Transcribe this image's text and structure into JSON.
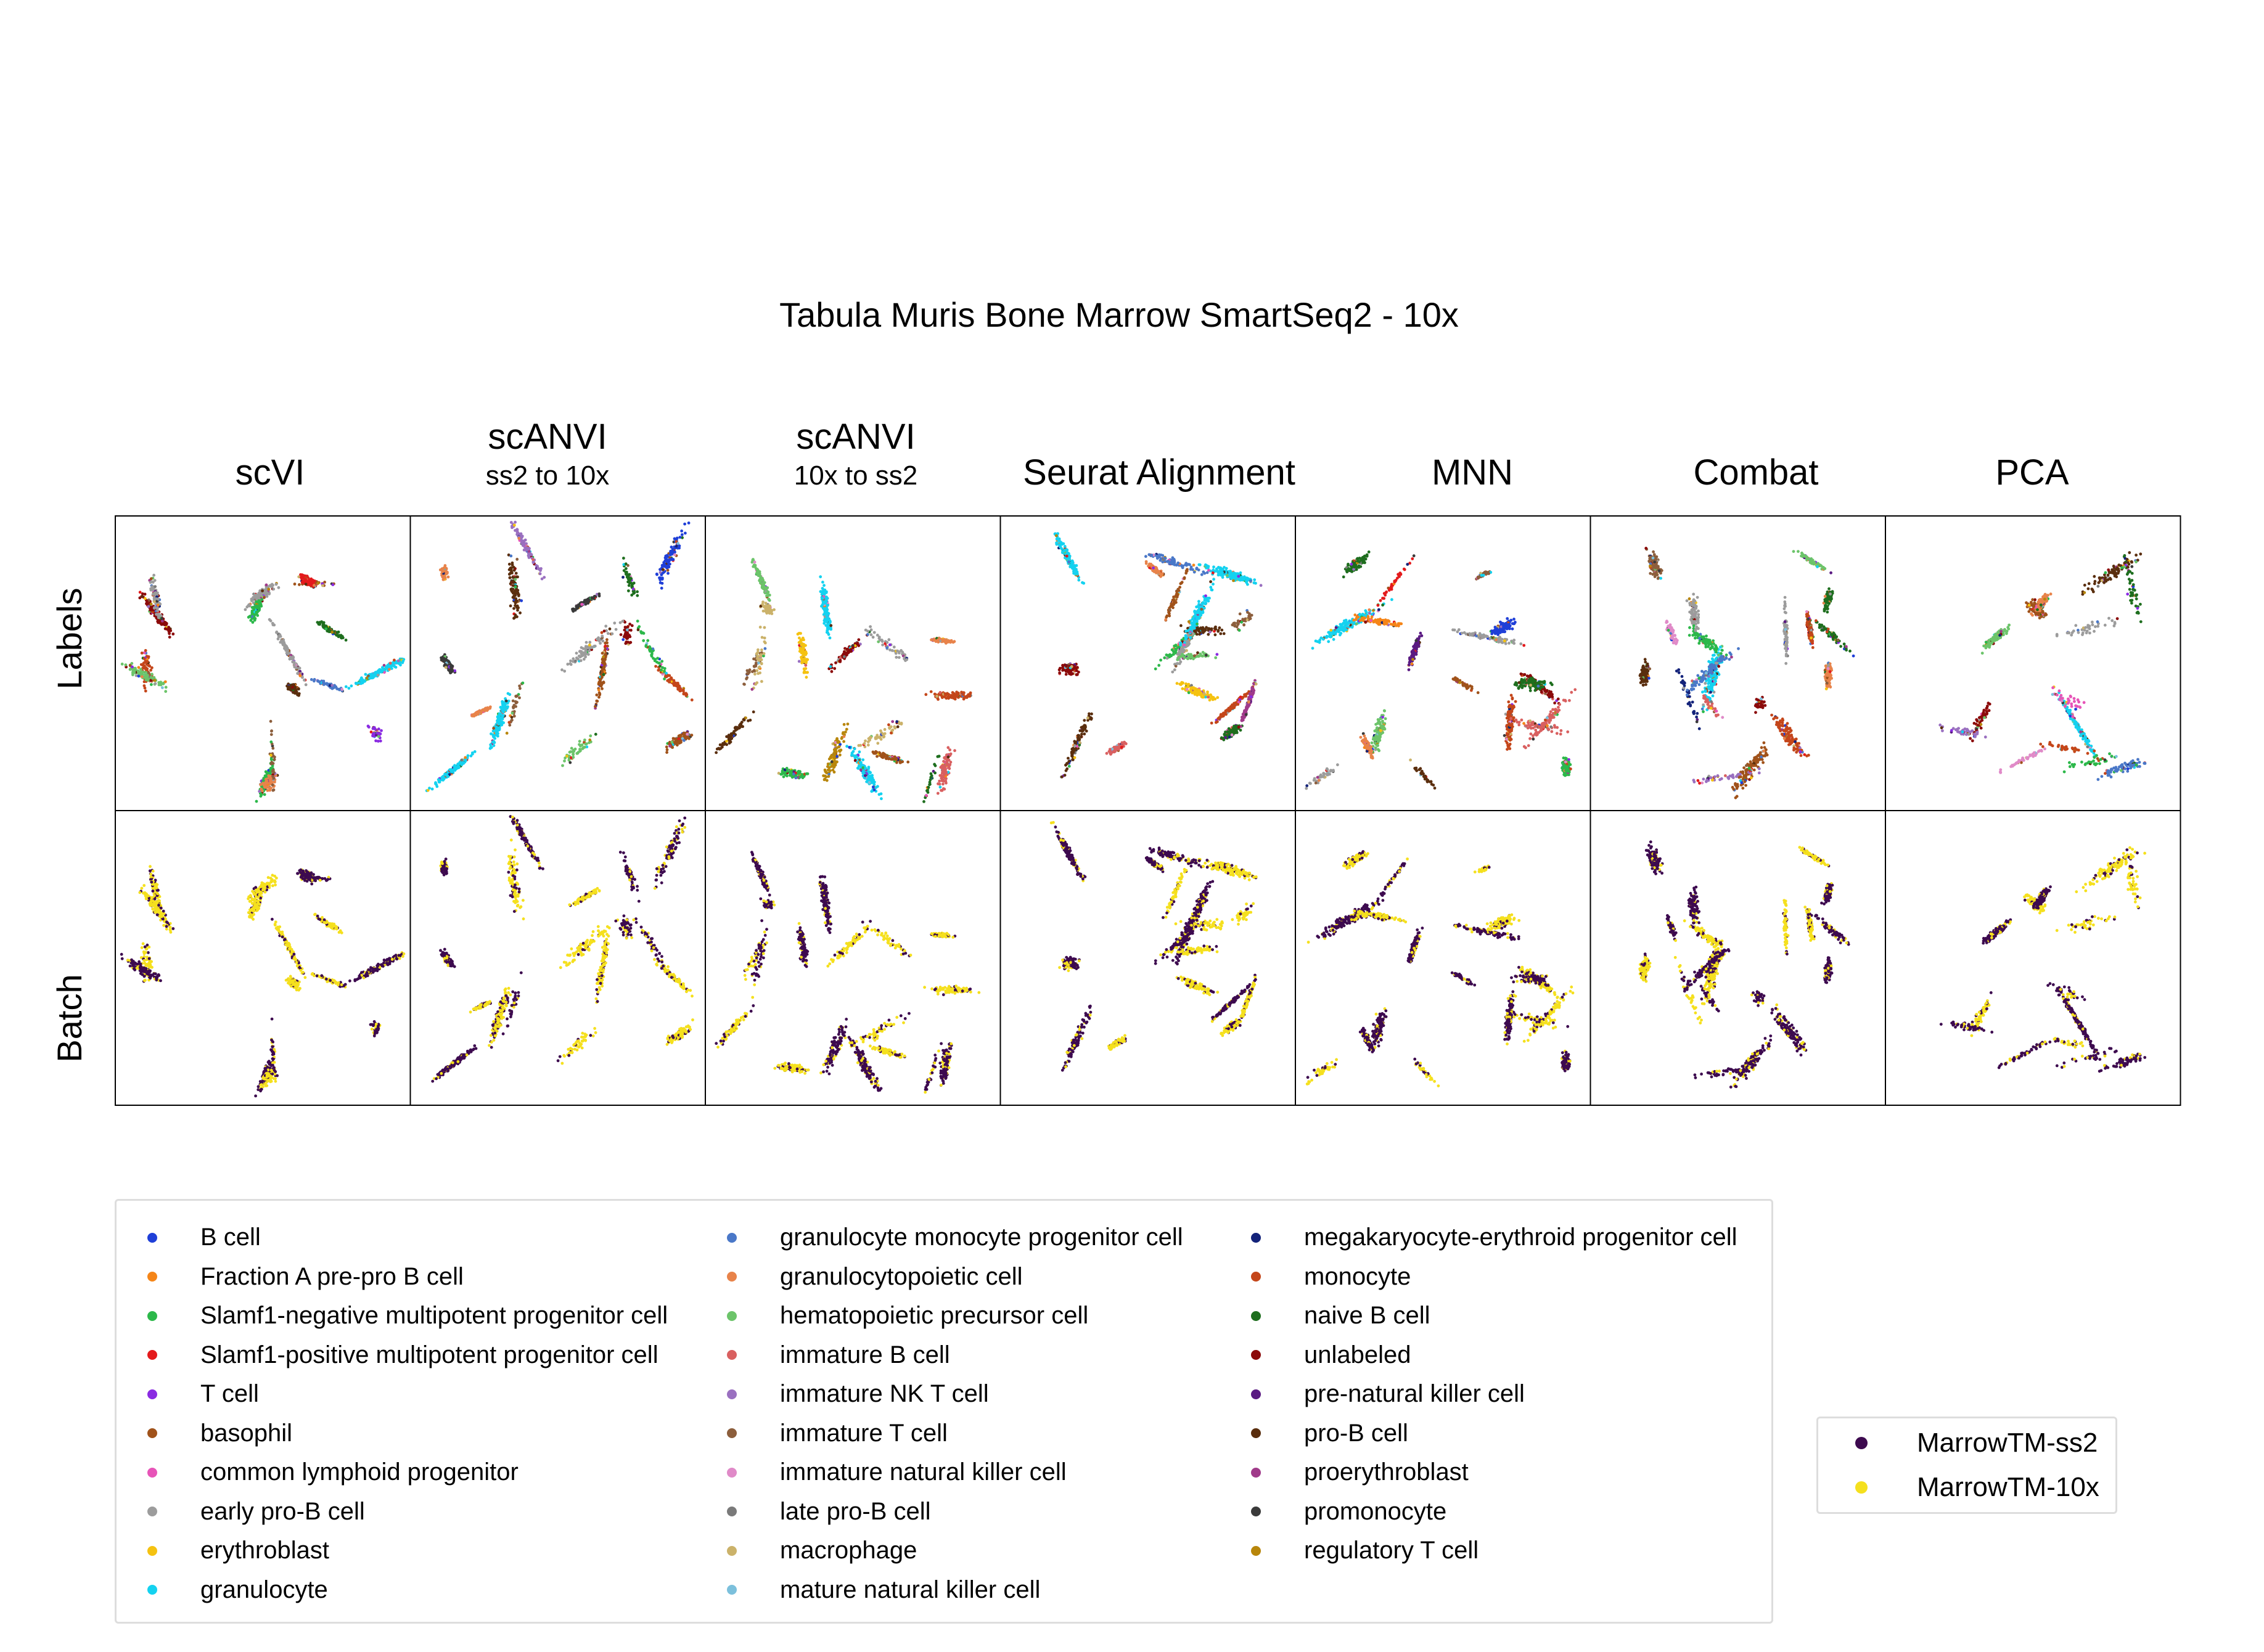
{
  "figure": {
    "title": "Tabula Muris Bone Marrow SmartSeq2 - 10x",
    "row_labels": [
      "Labels",
      "Batch"
    ]
  },
  "chart_data": {
    "type": "scatter",
    "title": "Tabula Muris Bone Marrow SmartSeq2 - 10x",
    "panel_rows": [
      "Labels",
      "Batch"
    ],
    "panels": [
      {
        "method": "scVI",
        "subtitle": ""
      },
      {
        "method": "scANVI",
        "subtitle": "ss2 to 10x"
      },
      {
        "method": "scANVI",
        "subtitle": "10x to ss2"
      },
      {
        "method": "Seurat Alignment",
        "subtitle": ""
      },
      {
        "method": "MNN",
        "subtitle": ""
      },
      {
        "method": "Combat",
        "subtitle": ""
      },
      {
        "method": "PCA",
        "subtitle": ""
      }
    ],
    "grid": false,
    "axes_ticks": false,
    "label_legend": {
      "placement": "bottom-left",
      "columns": 3,
      "entries": [
        {
          "label": "B cell",
          "color": "#1f3fd8"
        },
        {
          "label": "Fraction A pre-pro B cell",
          "color": "#f58518"
        },
        {
          "label": "Slamf1-negative multipotent progenitor cell",
          "color": "#2cb84a"
        },
        {
          "label": "Slamf1-positive multipotent progenitor cell",
          "color": "#e41a1c"
        },
        {
          "label": "T cell",
          "color": "#8a2be2"
        },
        {
          "label": "basophil",
          "color": "#a0521a"
        },
        {
          "label": "common lymphoid progenitor",
          "color": "#e754b8"
        },
        {
          "label": "early pro-B cell",
          "color": "#9c9c9c"
        },
        {
          "label": "erythroblast",
          "color": "#f5c211"
        },
        {
          "label": "granulocyte",
          "color": "#14d2f0"
        },
        {
          "label": "granulocyte monocyte progenitor cell",
          "color": "#4a78c8"
        },
        {
          "label": "granulocytopoietic cell",
          "color": "#e8834a"
        },
        {
          "label": "hematopoietic precursor cell",
          "color": "#6cc46a"
        },
        {
          "label": "immature B cell",
          "color": "#d96060"
        },
        {
          "label": "immature NK T cell",
          "color": "#9a70c0"
        },
        {
          "label": "immature T cell",
          "color": "#8c5e3c"
        },
        {
          "label": "immature natural killer cell",
          "color": "#e08ac8"
        },
        {
          "label": "late pro-B cell",
          "color": "#7a7a7a"
        },
        {
          "label": "macrophage",
          "color": "#cbb26a"
        },
        {
          "label": "mature natural killer cell",
          "color": "#7cc0dc"
        },
        {
          "label": "megakaryocyte-erythroid progenitor cell",
          "color": "#14237a"
        },
        {
          "label": "monocyte",
          "color": "#c4461a"
        },
        {
          "label": "naive B cell",
          "color": "#1e6e1e"
        },
        {
          "label": "unlabeled",
          "color": "#8b0a0a"
        },
        {
          "label": "pre-natural killer cell",
          "color": "#5a1a82"
        },
        {
          "label": "pro-B cell",
          "color": "#5a2e0e"
        },
        {
          "label": "proerythroblast",
          "color": "#a03a8a"
        },
        {
          "label": "promonocyte",
          "color": "#3a3a3a"
        },
        {
          "label": "regulatory T cell",
          "color": "#b8860b"
        }
      ]
    },
    "batch_legend": {
      "placement": "bottom-right",
      "entries": [
        {
          "label": "MarrowTM-ss2",
          "color": "#3d0a4f"
        },
        {
          "label": "MarrowTM-10x",
          "color": "#f5e01e"
        }
      ]
    }
  }
}
